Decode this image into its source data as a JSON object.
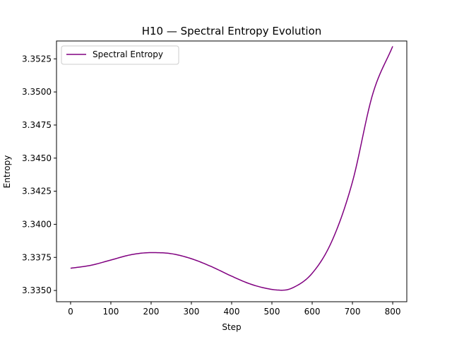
{
  "chart_data": {
    "type": "line",
    "title": "H10 — Spectral Entropy Evolution",
    "xlabel": "Step",
    "ylabel": "Entropy",
    "xlim": [
      -35,
      835
    ],
    "ylim": [
      3.33415,
      3.35385
    ],
    "xticks": [
      0,
      100,
      200,
      300,
      400,
      500,
      600,
      700,
      800
    ],
    "yticks": [
      3.335,
      3.3375,
      3.34,
      3.3425,
      3.345,
      3.3475,
      3.35,
      3.3525
    ],
    "ytick_labels": [
      "3.3350",
      "3.3375",
      "3.3400",
      "3.3425",
      "3.3450",
      "3.3475",
      "3.3500",
      "3.3525"
    ],
    "grid": false,
    "legend_position": "upper-left",
    "series": [
      {
        "name": "Spectral Entropy",
        "color": "#800080",
        "x": [
          0,
          50,
          100,
          150,
          200,
          250,
          300,
          350,
          400,
          450,
          500,
          525,
          550,
          600,
          650,
          700,
          750,
          800
        ],
        "y": [
          3.33668,
          3.3369,
          3.3373,
          3.3377,
          3.33786,
          3.33778,
          3.3374,
          3.3368,
          3.33608,
          3.33545,
          3.33508,
          3.33502,
          3.33518,
          3.3363,
          3.3388,
          3.3432,
          3.3498,
          3.35345
        ]
      }
    ]
  }
}
